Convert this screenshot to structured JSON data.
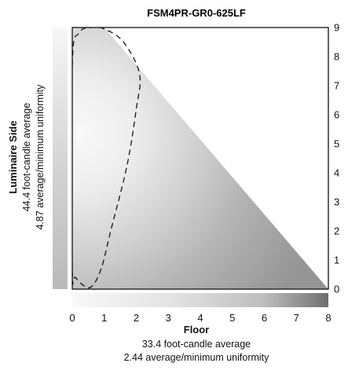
{
  "chart_data": {
    "type": "heatmap",
    "title": "FSM4PR-GR0-625LF",
    "x_axis": {
      "label": "Floor",
      "sublabels": [
        "33.4 foot-candle average",
        "2.44 average/minimum uniformity"
      ],
      "ticks": [
        "0",
        "1",
        "2",
        "3",
        "4",
        "5",
        "6",
        "7",
        "8"
      ],
      "range": [
        0,
        8
      ]
    },
    "y_axis": {
      "label": "Luminaire Side",
      "sublabels": [
        "44.4 foot-candle average",
        "4.87 average/minimum uniformity"
      ],
      "ticks": [
        "0",
        "1",
        "2",
        "3",
        "4",
        "5",
        "6",
        "7",
        "8",
        "9"
      ],
      "range": [
        0,
        9
      ],
      "position": "right"
    },
    "triangle_boundary": [
      [
        1.0,
        9.0
      ],
      [
        8.0,
        0.0
      ]
    ],
    "dashed_contour": [
      [
        0.0,
        7.7
      ],
      [
        0.2,
        8.8
      ],
      [
        0.6,
        9.0
      ],
      [
        1.0,
        8.95
      ],
      [
        1.6,
        8.5
      ],
      [
        2.1,
        7.4
      ],
      [
        2.0,
        6.2
      ],
      [
        1.7,
        4.2
      ],
      [
        1.2,
        2.0
      ],
      [
        0.9,
        0.7
      ],
      [
        0.55,
        0.05
      ],
      [
        0.1,
        0.4
      ],
      [
        0.0,
        0.8
      ]
    ],
    "colors": {
      "bright": "#f7f7f7",
      "mid": "#c8c8c8",
      "dark": "#8c8c8c",
      "frame": "#111111"
    }
  }
}
